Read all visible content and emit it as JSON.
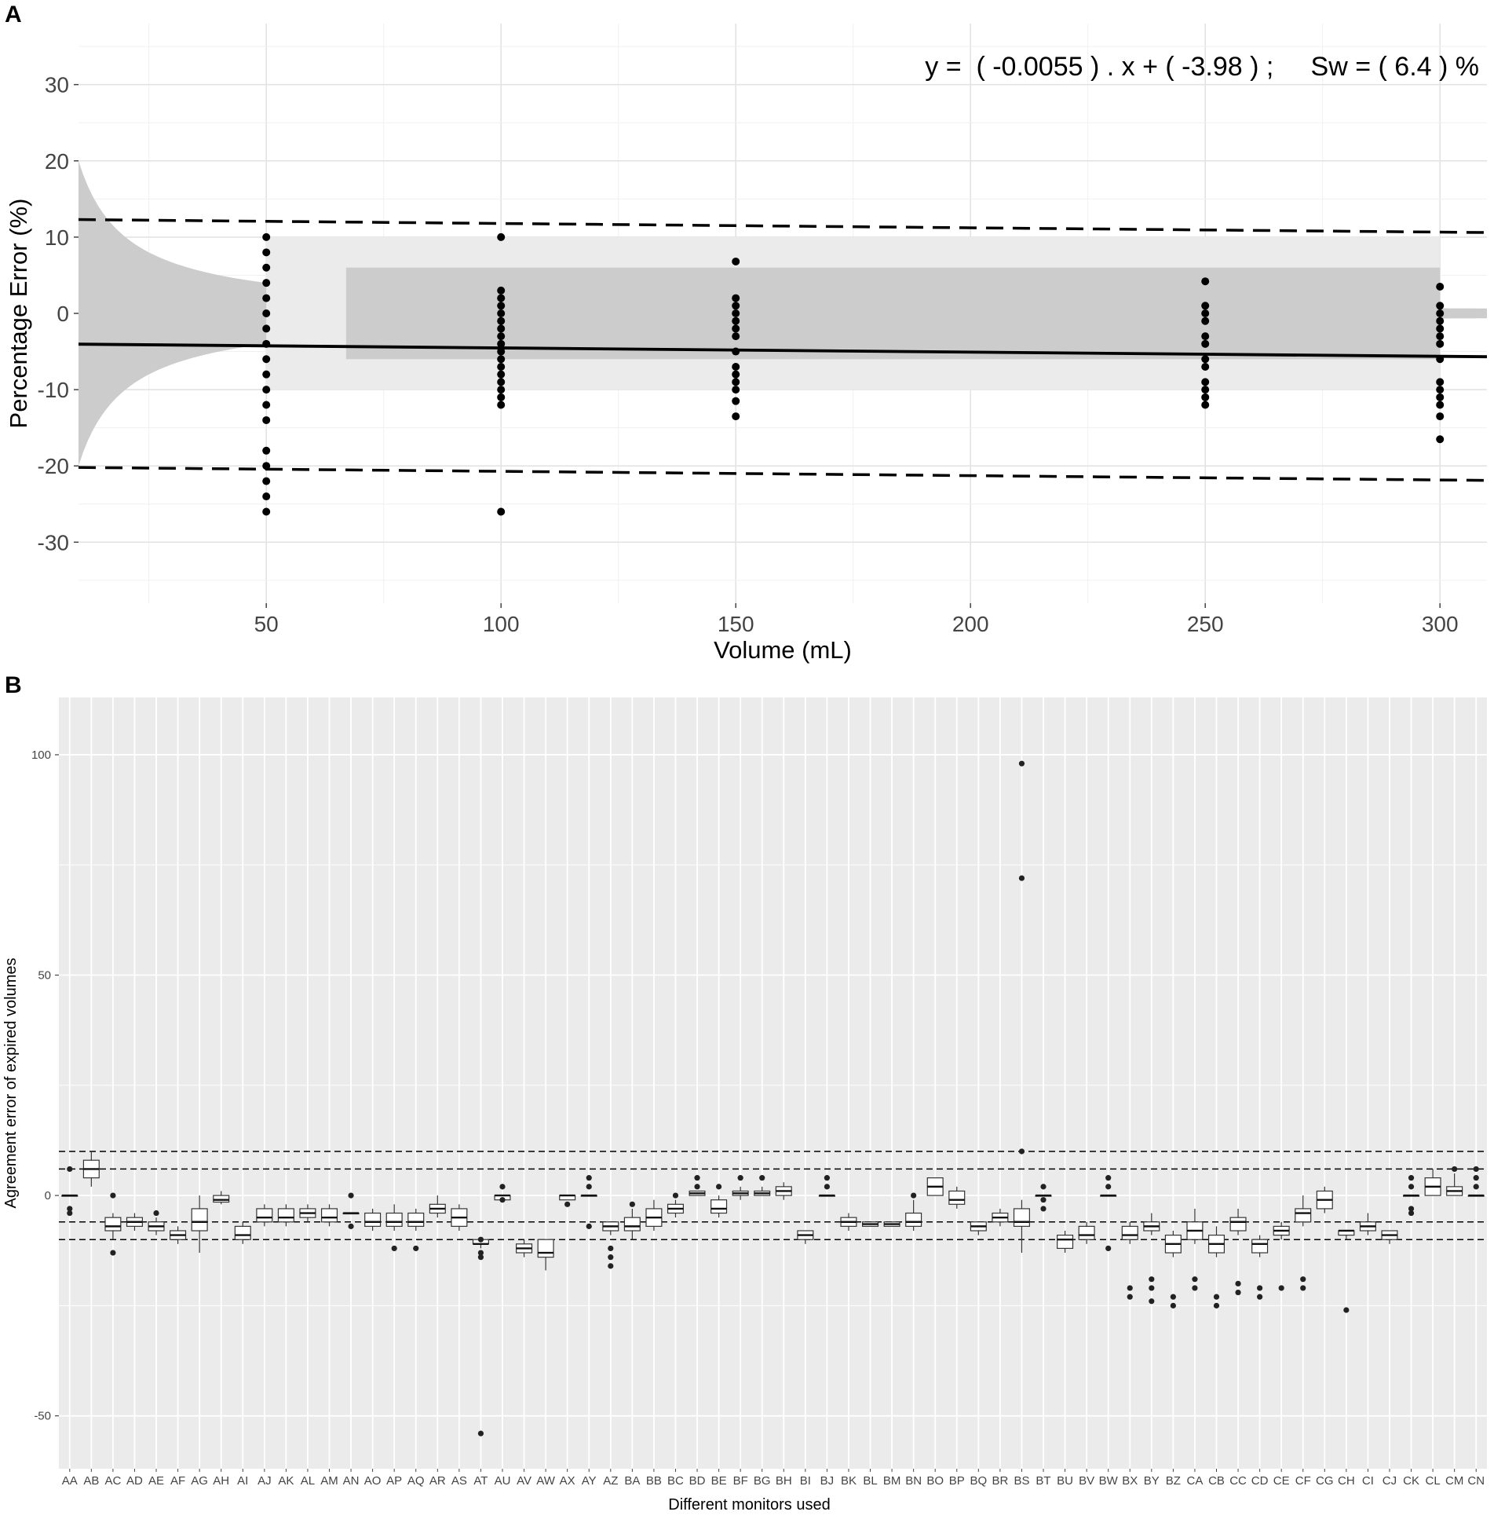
{
  "panels": {
    "a_label": "A",
    "b_label": "B"
  },
  "chart_data": [
    {
      "type": "scatter",
      "xlabel": "Volume (mL)",
      "ylabel": "Percentage Error (%)",
      "xlim": [
        10,
        310
      ],
      "ylim": [
        -38,
        38
      ],
      "x_ticks": [
        50,
        100,
        150,
        200,
        250,
        300
      ],
      "y_ticks": [
        -30,
        -20,
        -10,
        0,
        10,
        20,
        30
      ],
      "grid": true,
      "annotation": "y =  ( -0.0055 ) . x + ( -3.98 ) ;     Sw = ( 6.4 ) %",
      "regression": {
        "slope": -0.0055,
        "intercept": -3.98
      },
      "upper_limit": {
        "x": [
          10,
          310
        ],
        "y": [
          12.3,
          10.6
        ]
      },
      "lower_limit": {
        "x": [
          10,
          310
        ],
        "y": [
          -20.2,
          -21.9
        ]
      },
      "shaded_band_outer": [
        -10,
        10
      ],
      "shaded_band_inner": [
        -6,
        6
      ],
      "uncertainty_funnel_constant": 200,
      "points": [
        {
          "x": 50,
          "y": [
            10,
            8,
            6,
            4,
            2,
            0,
            -2,
            -4,
            -6,
            -8,
            -10,
            -12,
            -14,
            -18,
            -20,
            -22,
            -24,
            -26
          ]
        },
        {
          "x": 100,
          "y": [
            10,
            3,
            2,
            1,
            0,
            -1,
            -2,
            -3,
            -4,
            -5,
            -6,
            -7,
            -8,
            -9,
            -10,
            -11,
            -12,
            -26
          ]
        },
        {
          "x": 150,
          "y": [
            6.8,
            2,
            1,
            0,
            -1,
            -2,
            -3,
            -5,
            -7,
            -8,
            -9,
            -10,
            -11.5,
            -13.5
          ]
        },
        {
          "x": 250,
          "y": [
            4.2,
            1,
            0,
            -1,
            -3,
            -4,
            -6,
            -7,
            -9,
            -10,
            -11,
            -12
          ]
        },
        {
          "x": 300,
          "y": [
            3.5,
            1,
            0,
            -1,
            -2,
            -3,
            -4,
            -6,
            -9,
            -10,
            -11,
            -12,
            -13.5,
            -16.5
          ]
        }
      ]
    },
    {
      "type": "box",
      "xlabel": "Different monitors used",
      "ylabel": "Agreement error of expired volumes",
      "ylim": [
        -62,
        113
      ],
      "y_ticks": [
        -50,
        0,
        50,
        100
      ],
      "grid": true,
      "reference_lines": [
        10,
        6,
        -6,
        -10
      ],
      "categories": [
        "AA",
        "AB",
        "AC",
        "AD",
        "AE",
        "AF",
        "AG",
        "AH",
        "AI",
        "AJ",
        "AK",
        "AL",
        "AM",
        "AN",
        "AO",
        "AP",
        "AQ",
        "AR",
        "AS",
        "AT",
        "AU",
        "AV",
        "AW",
        "AX",
        "AY",
        "AZ",
        "BA",
        "BB",
        "BC",
        "BD",
        "BE",
        "BF",
        "BG",
        "BH",
        "BI",
        "BJ",
        "BK",
        "BL",
        "BM",
        "BN",
        "BO",
        "BP",
        "BQ",
        "BR",
        "BS",
        "BT",
        "BU",
        "BV",
        "BW",
        "BX",
        "BY",
        "BZ",
        "CA",
        "CB",
        "CC",
        "CD",
        "CE",
        "CF",
        "CG",
        "CH",
        "CI",
        "CJ",
        "CK",
        "CL",
        "CM",
        "CN"
      ],
      "boxes": [
        {
          "q1": 0,
          "med": 0,
          "q3": 0,
          "lo": 0,
          "hi": 0,
          "out": [
            6,
            -3,
            -4
          ]
        },
        {
          "q1": 4,
          "med": 6,
          "q3": 8,
          "lo": 2,
          "hi": 10,
          "out": []
        },
        {
          "q1": -8,
          "med": -7,
          "q3": -5,
          "lo": -10,
          "hi": -4,
          "out": [
            0,
            -13
          ]
        },
        {
          "q1": -7,
          "med": -6,
          "q3": -5,
          "lo": -8,
          "hi": -4,
          "out": []
        },
        {
          "q1": -8,
          "med": -7,
          "q3": -6,
          "lo": -9,
          "hi": -5,
          "out": [
            -4
          ]
        },
        {
          "q1": -10,
          "med": -9,
          "q3": -8,
          "lo": -11,
          "hi": -7,
          "out": []
        },
        {
          "q1": -8,
          "med": -6,
          "q3": -3,
          "lo": -13,
          "hi": 0,
          "out": []
        },
        {
          "q1": -1.5,
          "med": -1,
          "q3": 0,
          "lo": -2,
          "hi": 1,
          "out": []
        },
        {
          "q1": -10,
          "med": -9,
          "q3": -7,
          "lo": -11,
          "hi": -6,
          "out": []
        },
        {
          "q1": -6,
          "med": -5,
          "q3": -3,
          "lo": -7,
          "hi": -2,
          "out": []
        },
        {
          "q1": -6,
          "med": -5,
          "q3": -3,
          "lo": -7,
          "hi": -2,
          "out": []
        },
        {
          "q1": -5,
          "med": -4,
          "q3": -3,
          "lo": -6,
          "hi": -2,
          "out": []
        },
        {
          "q1": -6,
          "med": -5,
          "q3": -3,
          "lo": -7,
          "hi": -2,
          "out": []
        },
        {
          "q1": -4,
          "med": -4,
          "q3": -4,
          "lo": -4,
          "hi": -4,
          "out": [
            0,
            -7
          ]
        },
        {
          "q1": -7,
          "med": -6,
          "q3": -4,
          "lo": -8,
          "hi": -3,
          "out": []
        },
        {
          "q1": -7,
          "med": -6,
          "q3": -4,
          "lo": -8,
          "hi": -2,
          "out": [
            -12
          ]
        },
        {
          "q1": -7,
          "med": -6,
          "q3": -4,
          "lo": -8,
          "hi": -3,
          "out": [
            -12
          ]
        },
        {
          "q1": -4,
          "med": -3,
          "q3": -2,
          "lo": -5,
          "hi": 0,
          "out": []
        },
        {
          "q1": -7,
          "med": -5,
          "q3": -3,
          "lo": -8,
          "hi": -2,
          "out": []
        },
        {
          "q1": -11,
          "med": -11,
          "q3": -10,
          "lo": -12,
          "hi": -10,
          "out": [
            -10,
            -13,
            -14,
            -54
          ]
        },
        {
          "q1": -1,
          "med": 0,
          "q3": 0,
          "lo": -1,
          "hi": 0,
          "out": [
            2,
            -1
          ]
        },
        {
          "q1": -13,
          "med": -12,
          "q3": -11,
          "lo": -14,
          "hi": -10,
          "out": []
        },
        {
          "q1": -14,
          "med": -13,
          "q3": -10,
          "lo": -17,
          "hi": -10,
          "out": []
        },
        {
          "q1": -1,
          "med": 0,
          "q3": 0,
          "lo": -1,
          "hi": 0,
          "out": [
            -2
          ]
        },
        {
          "q1": 0,
          "med": 0,
          "q3": 0,
          "lo": 0,
          "hi": 0,
          "out": [
            4,
            2,
            -7
          ]
        },
        {
          "q1": -8,
          "med": -7,
          "q3": -6,
          "lo": -9,
          "hi": -6,
          "out": [
            -12,
            -14,
            -16
          ]
        },
        {
          "q1": -8,
          "med": -7,
          "q3": -5,
          "lo": -10,
          "hi": -3,
          "out": [
            -2
          ]
        },
        {
          "q1": -7,
          "med": -5,
          "q3": -3,
          "lo": -8,
          "hi": -1,
          "out": []
        },
        {
          "q1": -4,
          "med": -3,
          "q3": -2,
          "lo": -5,
          "hi": -1,
          "out": [
            0
          ]
        },
        {
          "q1": 0,
          "med": 0.5,
          "q3": 1,
          "lo": 0,
          "hi": 1,
          "out": [
            4,
            2
          ]
        },
        {
          "q1": -4,
          "med": -3,
          "q3": -1,
          "lo": -5,
          "hi": 0,
          "out": [
            2
          ]
        },
        {
          "q1": 0,
          "med": 0.5,
          "q3": 1,
          "lo": -1,
          "hi": 2,
          "out": [
            4
          ]
        },
        {
          "q1": 0,
          "med": 0.5,
          "q3": 1,
          "lo": 0,
          "hi": 2,
          "out": [
            4
          ]
        },
        {
          "q1": 0,
          "med": 1,
          "q3": 2,
          "lo": -1,
          "hi": 3,
          "out": []
        },
        {
          "q1": -10,
          "med": -9,
          "q3": -8,
          "lo": -11,
          "hi": -8,
          "out": []
        },
        {
          "q1": 0,
          "med": 0,
          "q3": 0,
          "lo": 0,
          "hi": 0,
          "out": [
            4,
            2
          ]
        },
        {
          "q1": -7,
          "med": -6,
          "q3": -5,
          "lo": -8,
          "hi": -4,
          "out": []
        },
        {
          "q1": -7,
          "med": -6.5,
          "q3": -6,
          "lo": -7,
          "hi": -6,
          "out": []
        },
        {
          "q1": -7,
          "med": -6.5,
          "q3": -6,
          "lo": -7,
          "hi": -6,
          "out": []
        },
        {
          "q1": -7,
          "med": -6,
          "q3": -4,
          "lo": -8,
          "hi": -1,
          "out": [
            0
          ]
        },
        {
          "q1": 0,
          "med": 2,
          "q3": 4,
          "lo": 0,
          "hi": 4,
          "out": []
        },
        {
          "q1": -2,
          "med": -1,
          "q3": 1,
          "lo": -3,
          "hi": 2,
          "out": []
        },
        {
          "q1": -8,
          "med": -7,
          "q3": -6,
          "lo": -9,
          "hi": -6,
          "out": []
        },
        {
          "q1": -6,
          "med": -5,
          "q3": -4,
          "lo": -7,
          "hi": -3,
          "out": []
        },
        {
          "q1": -7,
          "med": -6,
          "q3": -3,
          "lo": -13,
          "hi": -1,
          "out": [
            10,
            72,
            98
          ]
        },
        {
          "q1": 0,
          "med": 0,
          "q3": 0,
          "lo": 0,
          "hi": 0,
          "out": [
            2,
            -1,
            -3
          ]
        },
        {
          "q1": -12,
          "med": -10,
          "q3": -9,
          "lo": -13,
          "hi": -8,
          "out": []
        },
        {
          "q1": -10,
          "med": -9,
          "q3": -7,
          "lo": -11,
          "hi": -6,
          "out": []
        },
        {
          "q1": 0,
          "med": 0,
          "q3": 0,
          "lo": 0,
          "hi": 0,
          "out": [
            4,
            2,
            -12
          ]
        },
        {
          "q1": -10,
          "med": -9,
          "q3": -7,
          "lo": -11,
          "hi": -6,
          "out": [
            -21,
            -23
          ]
        },
        {
          "q1": -8,
          "med": -7,
          "q3": -6,
          "lo": -9,
          "hi": -4,
          "out": [
            -19,
            -21,
            -24
          ]
        },
        {
          "q1": -13,
          "med": -11,
          "q3": -9,
          "lo": -14,
          "hi": -8,
          "out": [
            -23,
            -25
          ]
        },
        {
          "q1": -10,
          "med": -8,
          "q3": -6,
          "lo": -11,
          "hi": -3,
          "out": [
            -19,
            -21
          ]
        },
        {
          "q1": -13,
          "med": -11,
          "q3": -9,
          "lo": -14,
          "hi": -7,
          "out": [
            -23,
            -25
          ]
        },
        {
          "q1": -8,
          "med": -6,
          "q3": -5,
          "lo": -9,
          "hi": -3,
          "out": [
            -20,
            -22
          ]
        },
        {
          "q1": -13,
          "med": -11,
          "q3": -10,
          "lo": -14,
          "hi": -9,
          "out": [
            -21,
            -23
          ]
        },
        {
          "q1": -9,
          "med": -8,
          "q3": -7,
          "lo": -10,
          "hi": -6,
          "out": [
            -21
          ]
        },
        {
          "q1": -6,
          "med": -4,
          "q3": -3,
          "lo": -7,
          "hi": 0,
          "out": [
            -19,
            -21
          ]
        },
        {
          "q1": -3,
          "med": -1,
          "q3": 1,
          "lo": -4,
          "hi": 2,
          "out": []
        },
        {
          "q1": -9,
          "med": -8,
          "q3": -8,
          "lo": -10,
          "hi": -8,
          "out": [
            -26
          ]
        },
        {
          "q1": -8,
          "med": -7,
          "q3": -6,
          "lo": -9,
          "hi": -4,
          "out": []
        },
        {
          "q1": -10,
          "med": -9,
          "q3": -8,
          "lo": -11,
          "hi": -8,
          "out": []
        },
        {
          "q1": 0,
          "med": 0,
          "q3": 0,
          "lo": 0,
          "hi": 0,
          "out": [
            4,
            2,
            -3,
            -4
          ]
        },
        {
          "q1": 0,
          "med": 2,
          "q3": 4,
          "lo": 0,
          "hi": 6,
          "out": []
        },
        {
          "q1": 0,
          "med": 1,
          "q3": 2,
          "lo": 0,
          "hi": 5,
          "out": [
            6
          ]
        },
        {
          "q1": 0,
          "med": 0,
          "q3": 0,
          "lo": 0,
          "hi": 0,
          "out": [
            6,
            4,
            2
          ]
        }
      ]
    }
  ]
}
